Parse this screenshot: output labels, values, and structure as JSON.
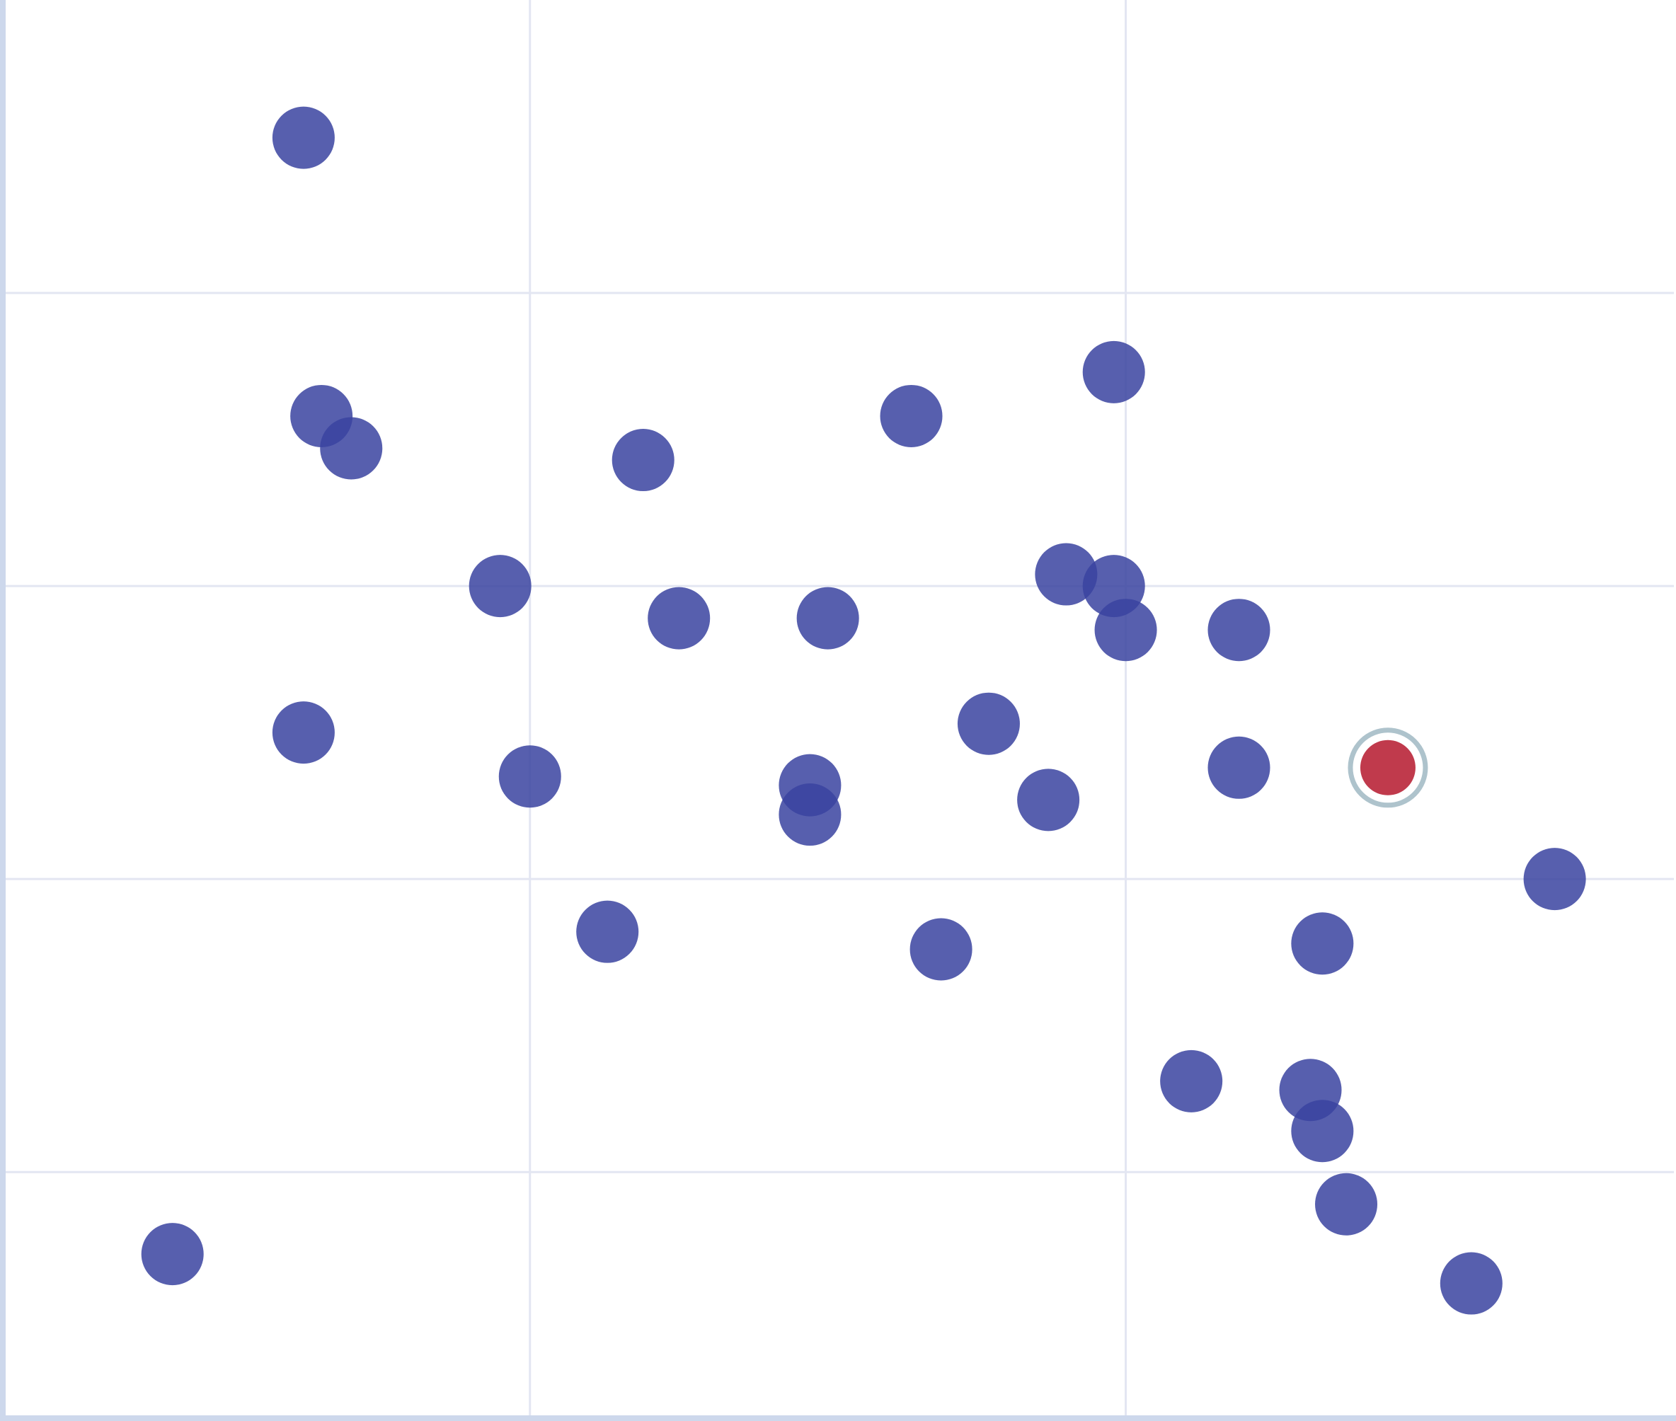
{
  "chart_data": {
    "type": "scatter",
    "title": "",
    "xlabel": "",
    "ylabel": "",
    "xlim": [
      0.12,
      2.92
    ],
    "ylim": [
      0.16,
      5
    ],
    "x_gridlines": [
      1,
      2
    ],
    "y_gridlines": [
      1,
      2,
      3,
      4
    ],
    "grid": true,
    "legend": "none",
    "colors": {
      "point": "#3a43a0",
      "highlight": "#c03a4c",
      "highlight_ring": "#aec3cc",
      "grid": "#e3e6f2",
      "axis": "#cdd8ec"
    },
    "points": [
      {
        "x": 0.62,
        "y": 4.53
      },
      {
        "x": 0.65,
        "y": 3.58
      },
      {
        "x": 0.7,
        "y": 3.47
      },
      {
        "x": 1.19,
        "y": 3.43
      },
      {
        "x": 1.64,
        "y": 3.58
      },
      {
        "x": 1.98,
        "y": 3.73
      },
      {
        "x": 0.95,
        "y": 3.0
      },
      {
        "x": 1.25,
        "y": 2.89
      },
      {
        "x": 1.5,
        "y": 2.89
      },
      {
        "x": 1.9,
        "y": 3.04
      },
      {
        "x": 1.98,
        "y": 3.0
      },
      {
        "x": 2.0,
        "y": 2.85
      },
      {
        "x": 2.19,
        "y": 2.85
      },
      {
        "x": 0.62,
        "y": 2.5
      },
      {
        "x": 1.0,
        "y": 2.35
      },
      {
        "x": 1.47,
        "y": 2.32
      },
      {
        "x": 1.47,
        "y": 2.22
      },
      {
        "x": 1.77,
        "y": 2.53
      },
      {
        "x": 1.87,
        "y": 2.27
      },
      {
        "x": 2.19,
        "y": 2.38
      },
      {
        "x": 2.44,
        "y": 2.38,
        "highlighted": true
      },
      {
        "x": 2.72,
        "y": 2.0
      },
      {
        "x": 1.13,
        "y": 1.82
      },
      {
        "x": 1.69,
        "y": 1.76
      },
      {
        "x": 2.33,
        "y": 1.78
      },
      {
        "x": 2.11,
        "y": 1.31
      },
      {
        "x": 2.31,
        "y": 1.28
      },
      {
        "x": 2.33,
        "y": 1.14
      },
      {
        "x": 2.37,
        "y": 0.89
      },
      {
        "x": 0.4,
        "y": 0.72
      },
      {
        "x": 2.58,
        "y": 0.62
      }
    ]
  }
}
